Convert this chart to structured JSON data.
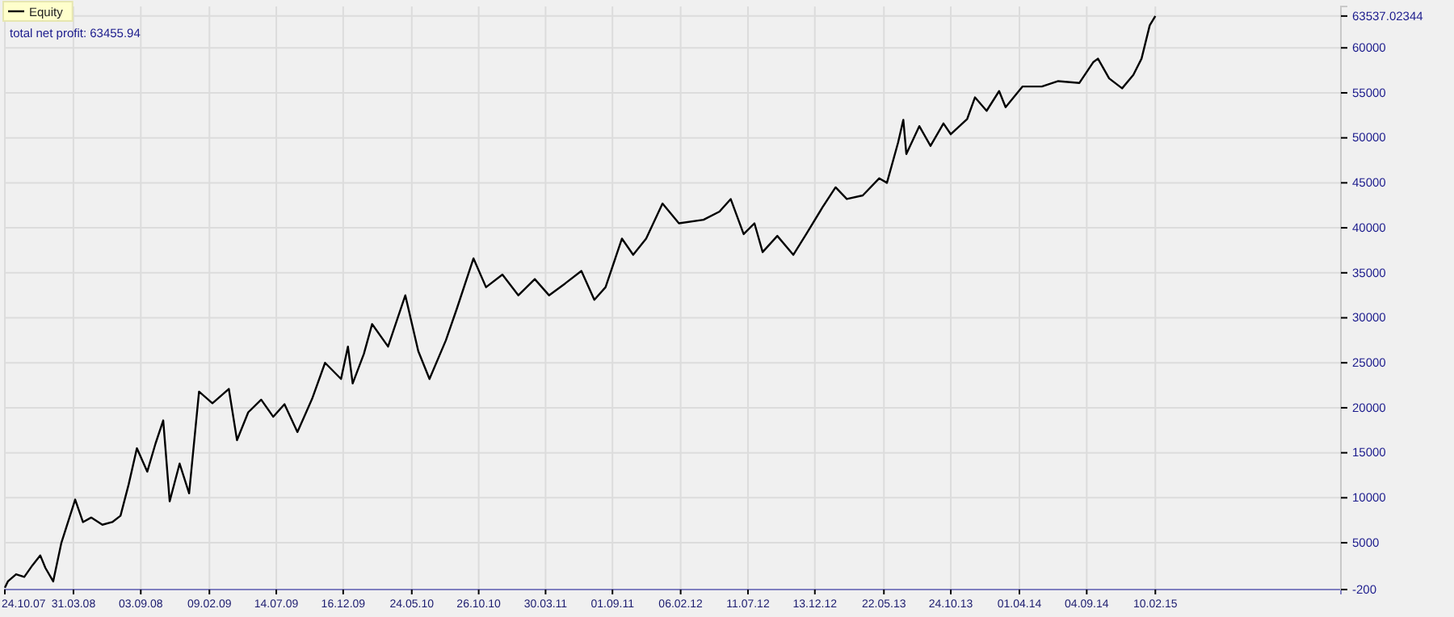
{
  "chart_data": {
    "type": "line",
    "legend": "top left",
    "grid": true,
    "line_style": "solid",
    "marker": "none",
    "annotations": [
      "total net profit: 63455.94"
    ],
    "xlim": [
      "2007-10-24",
      "2016-04-15"
    ],
    "xticks": [
      {
        "value": "2007-10-24",
        "label": "24.10.07"
      },
      {
        "value": "2008-03-31",
        "label": "31.03.08"
      },
      {
        "value": "2008-09-03",
        "label": "03.09.08"
      },
      {
        "value": "2009-02-09",
        "label": "09.02.09"
      },
      {
        "value": "2009-07-14",
        "label": "14.07.09"
      },
      {
        "value": "2009-12-16",
        "label": "16.12.09"
      },
      {
        "value": "2010-05-24",
        "label": "24.05.10"
      },
      {
        "value": "2010-10-26",
        "label": "26.10.10"
      },
      {
        "value": "2011-03-30",
        "label": "30.03.11"
      },
      {
        "value": "2011-09-01",
        "label": "01.09.11"
      },
      {
        "value": "2012-02-06",
        "label": "06.02.12"
      },
      {
        "value": "2012-07-11",
        "label": "11.07.12"
      },
      {
        "value": "2012-12-13",
        "label": "13.12.12"
      },
      {
        "value": "2013-05-22",
        "label": "22.05.13"
      },
      {
        "value": "2013-10-24",
        "label": "24.10.13"
      },
      {
        "value": "2014-04-01",
        "label": "01.04.14"
      },
      {
        "value": "2014-09-04",
        "label": "04.09.14"
      },
      {
        "value": "2015-02-10",
        "label": "10.02.15"
      }
    ],
    "ylim": [
      -200,
      64600
    ],
    "yticks": [
      -200,
      5000,
      10000,
      15000,
      20000,
      25000,
      30000,
      35000,
      40000,
      45000,
      50000,
      55000,
      60000,
      63537.02344
    ],
    "x": [
      "2007-10-24",
      "2007-10-31",
      "2007-11-19",
      "2007-12-08",
      "2007-12-27",
      "2008-01-14",
      "2008-01-26",
      "2008-02-13",
      "2008-03-03",
      "2008-04-04",
      "2008-04-22",
      "2008-05-11",
      "2008-06-06",
      "2008-06-29",
      "2008-07-18",
      "2008-08-06",
      "2008-08-25",
      "2008-09-18",
      "2008-10-07",
      "2008-10-25",
      "2008-11-09",
      "2008-12-02",
      "2008-12-24",
      "2009-01-16",
      "2009-02-16",
      "2009-03-26",
      "2009-04-14",
      "2009-05-10",
      "2009-06-09",
      "2009-07-07",
      "2009-08-02",
      "2009-09-01",
      "2009-10-05",
      "2009-11-04",
      "2009-12-11",
      "2009-12-27",
      "2010-01-07",
      "2010-02-02",
      "2010-02-21",
      "2010-03-30",
      "2010-05-09",
      "2010-06-08",
      "2010-07-04",
      "2010-08-11",
      "2010-09-06",
      "2010-10-14",
      "2010-11-12",
      "2010-12-20",
      "2011-01-26",
      "2011-03-05",
      "2011-04-07",
      "2011-05-14",
      "2011-06-21",
      "2011-07-21",
      "2011-08-16",
      "2011-09-23",
      "2011-10-19",
      "2011-11-18",
      "2011-12-26",
      "2012-02-02",
      "2012-03-30",
      "2012-05-06",
      "2012-06-01",
      "2012-07-01",
      "2012-07-26",
      "2012-08-14",
      "2012-09-17",
      "2012-10-24",
      "2012-11-23",
      "2012-12-31",
      "2013-01-30",
      "2013-02-25",
      "2013-04-03",
      "2013-05-11",
      "2013-05-29",
      "2013-06-24",
      "2013-07-06",
      "2013-07-13",
      "2013-08-12",
      "2013-09-07",
      "2013-10-07",
      "2013-10-24",
      "2013-12-01",
      "2013-12-19",
      "2014-01-15",
      "2014-02-13",
      "2014-02-28",
      "2014-04-08",
      "2014-05-23",
      "2014-06-30",
      "2014-08-18",
      "2014-09-19",
      "2014-09-30",
      "2014-10-26",
      "2014-11-25",
      "2014-12-21",
      "2015-01-09",
      "2015-01-28",
      "2015-02-10"
    ],
    "series": [
      {
        "name": "Equity",
        "color": "#000000",
        "values": [
          0,
          700,
          1500,
          1200,
          2500,
          3600,
          2200,
          700,
          5000,
          9800,
          7300,
          7800,
          7000,
          7300,
          8000,
          11500,
          15500,
          12900,
          16000,
          18600,
          9600,
          13800,
          10500,
          21800,
          20500,
          22100,
          16400,
          19500,
          20900,
          19000,
          20400,
          17300,
          21000,
          25000,
          23200,
          26800,
          22700,
          26000,
          29300,
          26800,
          32500,
          26300,
          23200,
          27500,
          31100,
          36600,
          33400,
          34800,
          32500,
          34300,
          32500,
          33800,
          35200,
          32000,
          33400,
          38800,
          37000,
          38800,
          42700,
          40500,
          40900,
          41800,
          43200,
          39300,
          40500,
          37300,
          39100,
          37000,
          39300,
          42300,
          44500,
          43200,
          43600,
          45500,
          45000,
          49500,
          52000,
          48200,
          51300,
          49100,
          51600,
          50400,
          52100,
          54500,
          53000,
          55200,
          53400,
          55700,
          55700,
          56300,
          56100,
          58400,
          58800,
          56600,
          55500,
          57000,
          58800,
          62500,
          63537.02344
        ]
      }
    ]
  }
}
